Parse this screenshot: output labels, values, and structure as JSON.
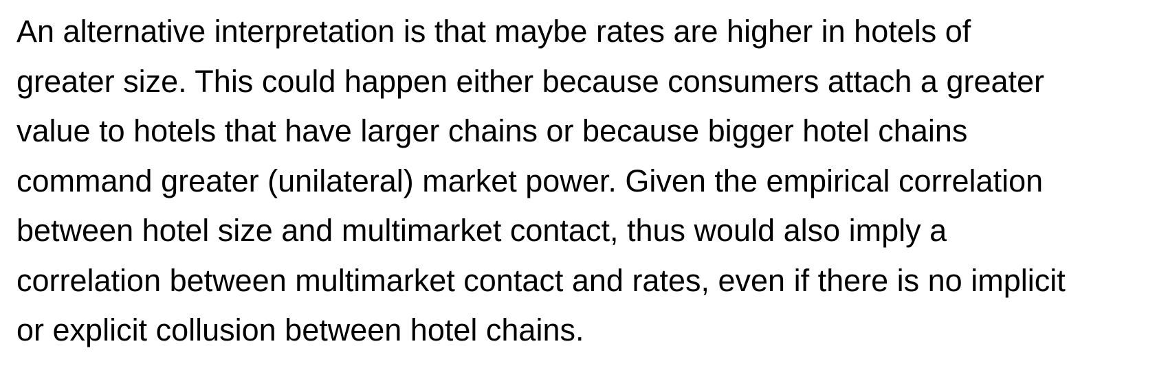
{
  "document": {
    "paragraph_lines": [
      "An alternative interpretation is that maybe rates are higher in hotels of",
      "greater size. This could happen either because consumers attach a greater",
      "value to hotels that have larger chains or because bigger hotel chains",
      "command greater (unilateral) market power. Given the empirical correlation",
      "between hotel size and multimarket contact, thus would also imply a",
      "correlation between multimarket contact and rates, even if there is no implicit",
      "or explicit collusion between hotel chains."
    ]
  }
}
